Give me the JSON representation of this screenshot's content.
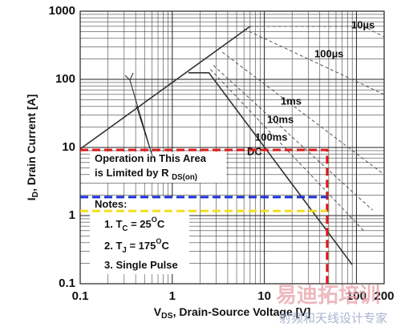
{
  "chart_data": {
    "type": "line",
    "log_x": true,
    "log_y": true,
    "grid": true,
    "xlim": [
      0.1,
      200
    ],
    "ylim": [
      0.1,
      1000
    ],
    "xticks": [
      0.1,
      1,
      10,
      100,
      200
    ],
    "yticks": [
      0.1,
      1,
      10,
      100,
      1000
    ],
    "xlabel": [
      {
        "text": "V"
      },
      {
        "text": "DS",
        "shift": "sub"
      },
      {
        "text": ", Drain-Source Voltage [V]"
      }
    ],
    "ylabel": [
      {
        "text": "I"
      },
      {
        "text": "D",
        "shift": "sub"
      },
      {
        "text": ", Drain Current [A]"
      }
    ],
    "annotation": [
      [
        {
          "text": "Operation in This Area"
        }
      ],
      [
        {
          "text": "is Limited by R "
        },
        {
          "text": "DS(on)",
          "shift": "sub"
        }
      ]
    ],
    "notes": [
      [
        {
          "text": "Notes:"
        }
      ],
      [
        {
          "text": "1. T"
        },
        {
          "text": "C",
          "shift": "sub"
        },
        {
          "text": " = 25"
        },
        {
          "text": "O",
          "shift": "sup"
        },
        {
          "text": "C"
        }
      ],
      [
        {
          "text": "2. T"
        },
        {
          "text": "J",
          "shift": "sub"
        },
        {
          "text": " = 175"
        },
        {
          "text": "O",
          "shift": "sup"
        },
        {
          "text": "C"
        }
      ],
      [
        {
          "text": "3. Single Pulse"
        }
      ]
    ],
    "series": [
      {
        "color": "#333333",
        "style": "solid",
        "x": [
          0.1,
          7
        ],
        "values": [
          9.5,
          600
        ]
      },
      {
        "name": "10µs",
        "color": "#555555",
        "style": "dashed",
        "x": [
          7,
          120,
          200
        ],
        "values": [
          600,
          600,
          420
        ]
      },
      {
        "name": "100µs",
        "color": "#555555",
        "style": "dashed",
        "x": [
          6,
          200
        ],
        "values": [
          550,
          60
        ]
      },
      {
        "name": "1ms",
        "color": "#555555",
        "style": "dashed",
        "x": [
          3.5,
          200
        ],
        "values": [
          250,
          4
        ]
      },
      {
        "name": "10ms",
        "color": "#555555",
        "style": "dashed",
        "x": [
          2.8,
          150
        ],
        "values": [
          160,
          1.2
        ]
      },
      {
        "name": "100ms",
        "color": "#555555",
        "style": "dashed",
        "x": [
          2.6,
          120
        ],
        "values": [
          140,
          0.6
        ]
      },
      {
        "name": "DC",
        "color": "#333333",
        "style": "solid",
        "x": [
          1.5,
          2.5,
          90
        ],
        "values": [
          125,
          125,
          0.19
        ]
      }
    ],
    "reference_lines": [
      {
        "color": "#e01818",
        "x": [
          0.1,
          48,
          48
        ],
        "values": [
          9.2,
          9.2,
          0.1
        ]
      },
      {
        "color": "#1a2fd8",
        "x": [
          0.1,
          48
        ],
        "values": [
          1.87,
          1.87
        ]
      },
      {
        "color": "#f0e020",
        "x": [
          0.1,
          48
        ],
        "values": [
          1.17,
          1.17
        ]
      }
    ],
    "watermark": [
      "易迪拓培训",
      "射频和天线设计专家"
    ]
  }
}
